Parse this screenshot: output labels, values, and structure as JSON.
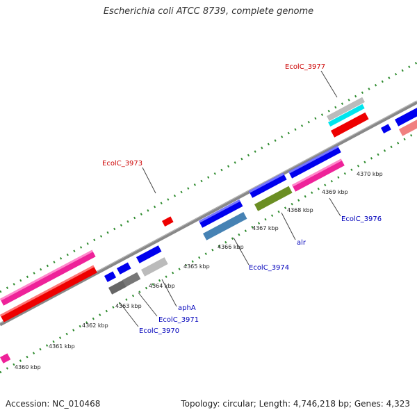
{
  "header": {
    "title": "Escherichia coli ATCC 8739, complete genome"
  },
  "footer": {
    "accession": "Accession: NC_010468",
    "summary": "Topology: circular; Length: 4,746,218 bp; Genes: 4,323"
  },
  "scale": {
    "ticks": [
      "4360 kbp",
      "4361 kbp",
      "4362 kbp",
      "4363 kbp",
      "4364 kbp",
      "4365 kbp",
      "4366 kbp",
      "4367 kbp",
      "4368 kbp",
      "4369 kbp",
      "4370 kbp"
    ]
  },
  "labels": {
    "EcolC_3977": "EcolC_3977",
    "EcolC_3973": "EcolC_3973",
    "EcolC_3976": "EcolC_3976",
    "alr": "alr",
    "EcolC_3974": "EcolC_3974",
    "aphA": "aphA",
    "EcolC_3971": "EcolC_3971",
    "EcolC_3970": "EcolC_3970"
  },
  "colors": {
    "backbone": "#888888",
    "dots": "#2e8b2e",
    "blue": "#0000ee",
    "red": "#ee0000",
    "magenta": "#ee2299",
    "olive": "#6b8e23",
    "steelblue": "#4682b4",
    "cyan": "#00e5ee",
    "grey": "#bbbbbb",
    "darkgrey": "#666666",
    "salmon": "#f08080",
    "label_red": "#cc0000",
    "label_blue": "#0000bb"
  }
}
